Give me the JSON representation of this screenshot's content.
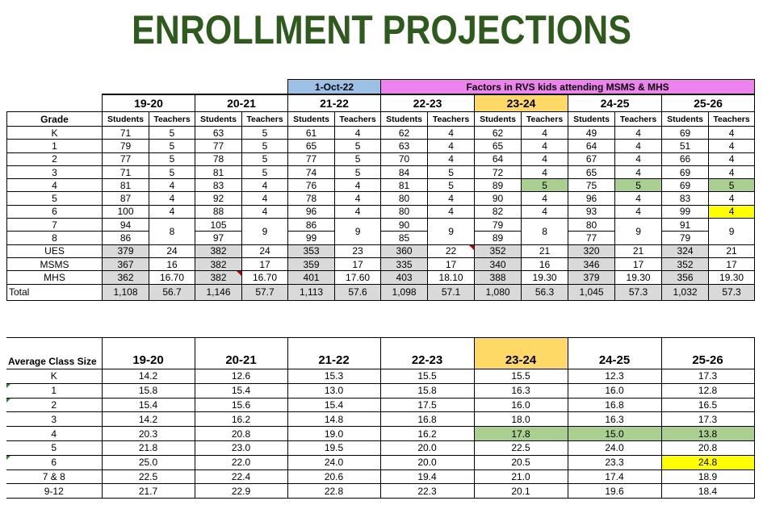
{
  "title": "ENROLLMENT PROJECTIONS",
  "banner": {
    "date_label": "1-Oct-22",
    "factors_label": "Factors in RVS kids attending MSMS & MHS"
  },
  "enrollment": {
    "grade_header": "Grade",
    "years": [
      "19-20",
      "20-21",
      "21-22",
      "22-23",
      "23-24",
      "24-25",
      "25-26"
    ],
    "students_label": "Students",
    "teachers_label": "Teachers",
    "rows": [
      {
        "grade": "K",
        "values": [
          "71",
          "5",
          "63",
          "5",
          "61",
          "4",
          "62",
          "4",
          "62",
          "4",
          "49",
          "4",
          "69",
          "4"
        ]
      },
      {
        "grade": "1",
        "values": [
          "79",
          "5",
          "77",
          "5",
          "65",
          "5",
          "63",
          "4",
          "65",
          "4",
          "64",
          "4",
          "51",
          "4"
        ]
      },
      {
        "grade": "2",
        "values": [
          "77",
          "5",
          "78",
          "5",
          "77",
          "5",
          "70",
          "4",
          "64",
          "4",
          "67",
          "4",
          "66",
          "4"
        ]
      },
      {
        "grade": "3",
        "values": [
          "71",
          "5",
          "81",
          "5",
          "74",
          "5",
          "84",
          "5",
          "72",
          "4",
          "65",
          "4",
          "69",
          "4"
        ]
      },
      {
        "grade": "4",
        "values": [
          "81",
          "4",
          "83",
          "4",
          "76",
          "4",
          "81",
          "5",
          "89",
          "5",
          "75",
          "5",
          "69",
          "5"
        ]
      },
      {
        "grade": "5",
        "values": [
          "87",
          "4",
          "92",
          "4",
          "78",
          "4",
          "80",
          "4",
          "90",
          "4",
          "96",
          "4",
          "83",
          "4"
        ]
      },
      {
        "grade": "6",
        "values": [
          "100",
          "4",
          "88",
          "4",
          "96",
          "4",
          "80",
          "4",
          "82",
          "4",
          "93",
          "4",
          "99",
          "4"
        ]
      }
    ],
    "grade78": {
      "grade7": "7",
      "grade8": "8",
      "students7": [
        "94",
        "105",
        "86",
        "90",
        "79",
        "80",
        "91"
      ],
      "students8": [
        "86",
        "97",
        "99",
        "85",
        "89",
        "77",
        "79"
      ],
      "teachers": [
        "8",
        "9",
        "9",
        "9",
        "8",
        "9",
        "9"
      ]
    },
    "schools": [
      {
        "name": "UES",
        "values": [
          "379",
          "24",
          "382",
          "24",
          "353",
          "23",
          "360",
          "22",
          "352",
          "21",
          "320",
          "21",
          "324",
          "21"
        ]
      },
      {
        "name": "MSMS",
        "values": [
          "367",
          "16",
          "382",
          "17",
          "359",
          "17",
          "335",
          "17",
          "340",
          "16",
          "346",
          "17",
          "352",
          "17"
        ]
      },
      {
        "name": "MHS",
        "values": [
          "362",
          "16.70",
          "382",
          "16.70",
          "401",
          "17.60",
          "403",
          "18.10",
          "388",
          "19.30",
          "379",
          "19.30",
          "356",
          "19.30"
        ]
      }
    ],
    "total": {
      "label": "Total",
      "values": [
        "1,108",
        "56.7",
        "1,146",
        "57.7",
        "1,113",
        "57.6",
        "1,098",
        "57.1",
        "1,080",
        "56.3",
        "1,045",
        "57.3",
        "1,032",
        "57.3"
      ]
    }
  },
  "average": {
    "header": "Average Class Size",
    "years": [
      "19-20",
      "20-21",
      "21-22",
      "22-23",
      "23-24",
      "24-25",
      "25-26"
    ],
    "rows": [
      {
        "grade": "K",
        "values": [
          "14.2",
          "12.6",
          "15.3",
          "15.5",
          "15.5",
          "12.3",
          "17.3"
        ]
      },
      {
        "grade": "1",
        "values": [
          "15.8",
          "15.4",
          "13.0",
          "15.8",
          "16.3",
          "16.0",
          "12.8"
        ]
      },
      {
        "grade": "2",
        "values": [
          "15.4",
          "15.6",
          "15.4",
          "17.5",
          "16.0",
          "16.8",
          "16.5"
        ]
      },
      {
        "grade": "3",
        "values": [
          "14.2",
          "16.2",
          "14.8",
          "16.8",
          "18.0",
          "16.3",
          "17.3"
        ]
      },
      {
        "grade": "4",
        "values": [
          "20.3",
          "20.8",
          "19.0",
          "16.2",
          "17.8",
          "15.0",
          "13.8"
        ]
      },
      {
        "grade": "5",
        "values": [
          "21.8",
          "23.0",
          "19.5",
          "20.0",
          "22.5",
          "24.0",
          "20.8"
        ]
      },
      {
        "grade": "6",
        "values": [
          "25.0",
          "22.0",
          "24.0",
          "20.0",
          "20.5",
          "23.3",
          "24.8"
        ]
      },
      {
        "grade": "7 & 8",
        "values": [
          "22.5",
          "22.4",
          "20.6",
          "19.4",
          "21.0",
          "17.4",
          "18.9"
        ]
      },
      {
        "grade": "9-12",
        "values": [
          "21.7",
          "22.9",
          "22.8",
          "22.3",
          "20.1",
          "19.6",
          "18.4"
        ]
      }
    ]
  },
  "colors": {
    "title": "#2e5a1e",
    "highlight_green": "#a9d08e",
    "highlight_yellow": "#ffff00",
    "highlight_orange": "#ffd966",
    "gray": "#d9d9d9",
    "blue": "#9bc2e6",
    "pink": "#ee82ee"
  }
}
